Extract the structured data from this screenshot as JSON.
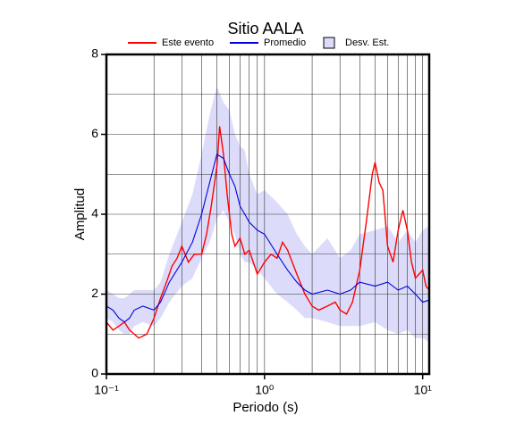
{
  "chart_data": {
    "type": "line",
    "title": "Sitio AALA",
    "xlabel": "Periodo (s)",
    "ylabel": "Amplitud",
    "xscale": "log",
    "xlim": [
      0.1,
      11
    ],
    "ylim": [
      0,
      8
    ],
    "xticks": [
      {
        "value": 0.1,
        "label": "10⁻¹"
      },
      {
        "value": 1,
        "label": "10⁰"
      },
      {
        "value": 10,
        "label": "10¹"
      }
    ],
    "xminor": [
      0.2,
      0.3,
      0.4,
      0.5,
      0.6,
      0.7,
      0.8,
      0.9,
      2,
      3,
      4,
      5,
      6,
      7,
      8,
      9
    ],
    "yticks": [
      0,
      2,
      4,
      6,
      8
    ],
    "yminor": [
      1,
      3,
      5,
      7
    ],
    "grid": true,
    "series": [
      {
        "name": "Este evento",
        "color": "#ff0000",
        "x": [
          0.1,
          0.11,
          0.12,
          0.13,
          0.14,
          0.15,
          0.16,
          0.17,
          0.18,
          0.19,
          0.2,
          0.22,
          0.24,
          0.26,
          0.28,
          0.3,
          0.33,
          0.36,
          0.4,
          0.43,
          0.46,
          0.5,
          0.52,
          0.55,
          0.58,
          0.62,
          0.65,
          0.7,
          0.75,
          0.8,
          0.9,
          1.0,
          1.1,
          1.2,
          1.3,
          1.4,
          1.6,
          1.8,
          2.0,
          2.2,
          2.5,
          2.8,
          3.0,
          3.3,
          3.6,
          4.0,
          4.4,
          4.8,
          5.0,
          5.3,
          5.6,
          6.0,
          6.5,
          7.0,
          7.5,
          8.0,
          8.5,
          9,
          10,
          10.5,
          11
        ],
        "values": [
          1.3,
          1.1,
          1.2,
          1.3,
          1.1,
          1.0,
          0.9,
          0.95,
          1.0,
          1.2,
          1.4,
          1.9,
          2.3,
          2.7,
          2.9,
          3.2,
          2.8,
          3.0,
          3.0,
          3.5,
          4.2,
          5.2,
          6.2,
          5.5,
          4.5,
          3.5,
          3.2,
          3.4,
          3.0,
          3.1,
          2.5,
          2.8,
          3.0,
          2.9,
          3.3,
          3.1,
          2.5,
          2.0,
          1.7,
          1.6,
          1.7,
          1.8,
          1.6,
          1.5,
          1.8,
          2.6,
          3.8,
          5.0,
          5.3,
          4.8,
          4.6,
          3.2,
          2.8,
          3.6,
          4.1,
          3.6,
          2.8,
          2.4,
          2.6,
          2.2,
          2.1
        ]
      },
      {
        "name": "Promedio",
        "color": "#0000dd",
        "x": [
          0.1,
          0.11,
          0.12,
          0.13,
          0.14,
          0.15,
          0.17,
          0.2,
          0.22,
          0.25,
          0.3,
          0.35,
          0.4,
          0.45,
          0.5,
          0.55,
          0.6,
          0.65,
          0.7,
          0.75,
          0.8,
          0.9,
          1.0,
          1.2,
          1.4,
          1.6,
          1.8,
          2.0,
          2.5,
          3.0,
          3.5,
          4,
          5,
          6,
          7,
          8,
          9,
          10,
          11
        ],
        "values": [
          1.7,
          1.6,
          1.4,
          1.3,
          1.4,
          1.6,
          1.7,
          1.6,
          1.8,
          2.3,
          2.8,
          3.3,
          4.0,
          4.8,
          5.5,
          5.4,
          5.0,
          4.7,
          4.2,
          4.0,
          3.8,
          3.6,
          3.5,
          3.0,
          2.6,
          2.3,
          2.1,
          2.0,
          2.1,
          2.0,
          2.1,
          2.3,
          2.2,
          2.3,
          2.1,
          2.2,
          2.0,
          1.8,
          1.85
        ]
      }
    ],
    "band": {
      "name": "Desv. Est.",
      "color": "#dcdcfa",
      "x": [
        0.1,
        0.11,
        0.12,
        0.13,
        0.14,
        0.15,
        0.17,
        0.2,
        0.22,
        0.25,
        0.3,
        0.35,
        0.4,
        0.45,
        0.5,
        0.55,
        0.6,
        0.65,
        0.7,
        0.75,
        0.8,
        0.9,
        1.0,
        1.2,
        1.4,
        1.6,
        1.8,
        2.0,
        2.5,
        3.0,
        3.5,
        4,
        5,
        6,
        7,
        8,
        9,
        10,
        11
      ],
      "upper": [
        2.1,
        2.0,
        1.9,
        1.9,
        2.0,
        2.1,
        2.1,
        2.1,
        2.3,
        3.0,
        3.8,
        4.5,
        5.5,
        6.5,
        7.2,
        6.8,
        6.6,
        6.0,
        5.7,
        5.6,
        5.0,
        4.5,
        4.6,
        4.3,
        4.0,
        3.5,
        3.2,
        3.0,
        3.4,
        2.9,
        3.1,
        3.5,
        3.6,
        3.7,
        3.3,
        3.6,
        3.3,
        3.6,
        3.7
      ],
      "lower": [
        1.4,
        1.3,
        1.1,
        1.0,
        1.0,
        1.2,
        1.3,
        1.2,
        1.4,
        1.8,
        2.2,
        2.4,
        2.9,
        3.3,
        3.9,
        4.1,
        3.8,
        3.5,
        3.0,
        2.8,
        2.8,
        2.6,
        2.4,
        2.0,
        1.8,
        1.6,
        1.4,
        1.4,
        1.3,
        1.2,
        1.2,
        1.2,
        1.3,
        1.1,
        1.0,
        1.1,
        0.9,
        0.9,
        0.8
      ]
    }
  }
}
